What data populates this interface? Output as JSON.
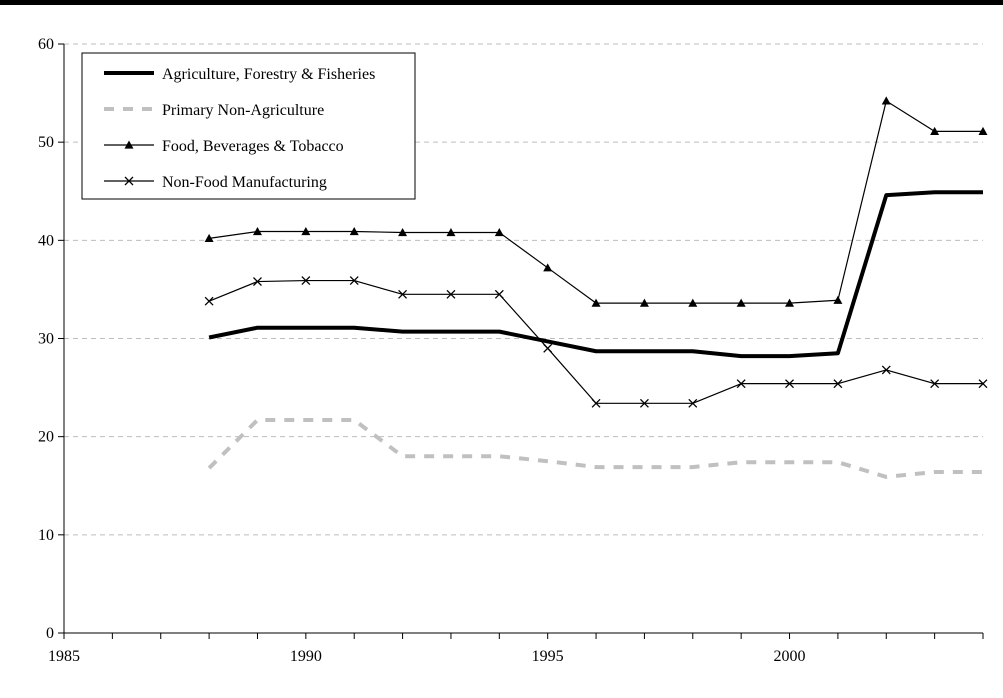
{
  "chart_data": {
    "type": "line",
    "title": "",
    "xlabel": "",
    "ylabel": "",
    "xlim": [
      1985,
      2004
    ],
    "ylim": [
      0,
      60
    ],
    "x_ticks": [
      1985,
      1990,
      1995,
      2000
    ],
    "y_ticks": [
      0,
      10,
      20,
      30,
      40,
      50,
      60
    ],
    "grid": "horizontal dashed",
    "legend_position": "top-left",
    "x": [
      1988,
      1989,
      1990,
      1991,
      1992,
      1993,
      1994,
      1995,
      1996,
      1997,
      1998,
      1999,
      2000,
      2001,
      2002,
      2003,
      2004
    ],
    "series": [
      {
        "name": "Agriculture, Forestry & Fisheries",
        "style": "thick-solid",
        "color": "#000000",
        "values": [
          30.1,
          31.1,
          31.1,
          31.1,
          30.7,
          30.7,
          30.7,
          29.7,
          28.7,
          28.7,
          28.7,
          28.2,
          28.2,
          28.5,
          44.6,
          44.9,
          44.9
        ]
      },
      {
        "name": "Primary Non-Agriculture",
        "style": "thick-dashed",
        "color": "#c0c0c0",
        "values": [
          16.8,
          21.7,
          21.7,
          21.7,
          18.0,
          18.0,
          18.0,
          17.5,
          16.9,
          16.9,
          16.9,
          17.4,
          17.4,
          17.4,
          15.9,
          16.4,
          16.4
        ]
      },
      {
        "name": "Food, Beverages & Tobacco",
        "style": "thin-triangle",
        "color": "#000000",
        "values": [
          40.2,
          40.9,
          40.9,
          40.9,
          40.8,
          40.8,
          40.8,
          37.2,
          33.6,
          33.6,
          33.6,
          33.6,
          33.6,
          33.9,
          54.2,
          51.1,
          51.1
        ]
      },
      {
        "name": "Non-Food Manufacturing",
        "style": "thin-x",
        "color": "#000000",
        "values": [
          33.8,
          35.8,
          35.9,
          35.9,
          34.5,
          34.5,
          34.5,
          29.0,
          23.4,
          23.4,
          23.4,
          25.4,
          25.4,
          25.4,
          26.8,
          25.4,
          25.4
        ]
      }
    ]
  }
}
